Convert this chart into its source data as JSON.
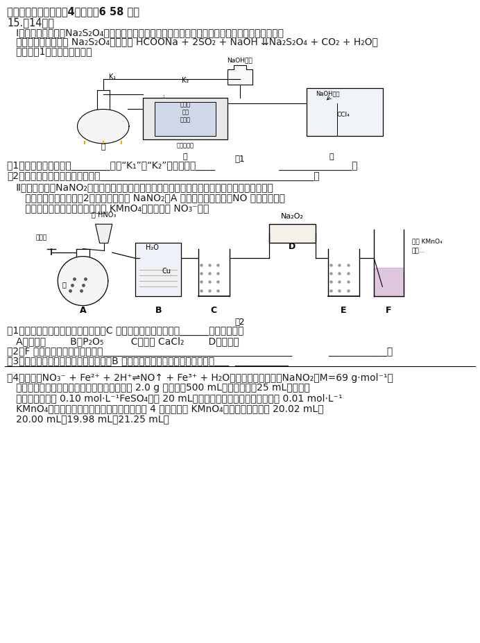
{
  "background_color": "#ffffff",
  "title": "二、非选择题：本题关4小题，关6 58 分。",
  "section": "15.（14分）",
  "line1": "   Ⅰ．连二亚硫酸锆（Na₂S₂O₄）易溶于水，难溶于甲醇，在空气中极易被氧化，用于纺织业的还原性",
  "line2": "   染色。甲酸锆法制备 Na₂S₂O₄的原理为 HCOONa + 2SO₂ + NaOH ⇊Na₂S₂O₄ + CO₂ + H₂O，",
  "line3": "   装置如图1。回答下列问题：",
  "q1_1": "（1）实验开始时先打开________（填“K₁”或“K₂”），原因为____                     _______________。",
  "q1_2": "（2）装置丙的作用除了防倒吸还有____________________________________________。",
  "line4": "   Ⅱ．亚硕酸锆（NaNO₂）是一种肉制品生产中常见的食品添加剂，使用时必须严格控制其用量。",
  "line5": "      某兴趣小组设计了如图2所示的装置制备 NaNO₂（A 中加热装置已略去，NO 可与过氧化锆",
  "line6": "      粉末发生化合反应，也能被酸性 KMnO₄溶液氧化成 NO₃⁻）。",
  "q2_1": "（1）为保证制得的亚硕酸锆的纯度，C 装置中盛放的试剂可能是______（填字母）。",
  "q2_1b": "   A．浓硫酸        B．P₂O₅         C．无水 CaCl₂        D．祅石灰",
  "q2_2": "（2）F 中发生反应的离子方程式为_______________________________________            ____________。",
  "q2_3": "（3）从提高氮原子利用率的角度出发，B 装置设计存在一定缺陷，如何改进？___  ___________",
  "q3_1": "（4）已知：NO₃⁻ + Fe²⁺ + 2H⁺⇌NO↑ + Fe³⁺ + H₂O；为测定得到产品中NaNO₂（M=69 g·mol⁻¹）",
  "q3_2": "   的纯度，采取如下实验步骤：准确称取质量为 2.0 g 样品配成500 mL溶液，取其中25 mL于锥形瓶",
  "q3_3": "   中，加入过量的 0.10 mol·L⁻¹FeSO₄溶液 20 mL；然后滴加稀硫酸充分反应后，用 0.01 mol·L⁻¹",
  "q3_4": "   KMnO₄溶液滴定至终点，读数，重复以上操作 4 次，所消耗 KMnO₄溶液的体积分别为 20.02 mL、",
  "q3_5": "   20.00 mL、19.98 mL、21.25 mL。"
}
